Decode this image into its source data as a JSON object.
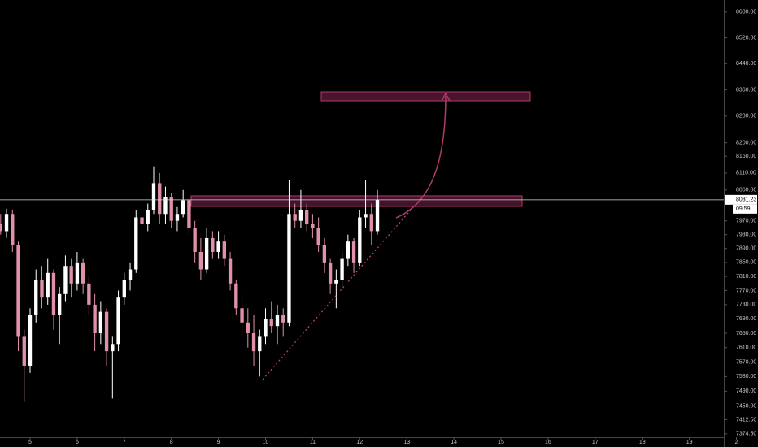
{
  "chart_data": {
    "type": "candlestick",
    "log_scale": true,
    "up_color": "#ffffff",
    "down_color": "#e091a8",
    "countdown": "09:59",
    "x": [
      4.375,
      4.5,
      4.625,
      4.75,
      4.875,
      5.0,
      5.125,
      5.25,
      5.375,
      5.5,
      5.625,
      5.75,
      5.875,
      6.0,
      6.125,
      6.25,
      6.375,
      6.5,
      6.625,
      6.75,
      6.875,
      7.0,
      7.125,
      7.25,
      7.375,
      7.5,
      7.625,
      7.75,
      7.875,
      8.0,
      8.125,
      8.25,
      8.375,
      8.5,
      8.625,
      8.75,
      8.875,
      9.0,
      9.125,
      9.25,
      9.375,
      9.5,
      9.625,
      9.75,
      9.875,
      10.0,
      10.125,
      10.25,
      10.375,
      10.5,
      10.625,
      10.75,
      10.875,
      11.0,
      11.125,
      11.25,
      11.375,
      11.5,
      11.625,
      11.75,
      11.875,
      12.0,
      12.125,
      12.25,
      12.375
    ],
    "open": [
      7960,
      7940,
      7990,
      7900,
      7640,
      7560,
      7700,
      7800,
      7750,
      7820,
      7700,
      7760,
      7840,
      7790,
      7850,
      7790,
      7730,
      7650,
      7710,
      7600,
      7620,
      7750,
      7800,
      7830,
      7980,
      7960,
      8000,
      8080,
      7990,
      8040,
      7970,
      7990,
      8030,
      7950,
      7880,
      7830,
      7920,
      7880,
      7910,
      7860,
      7790,
      7720,
      7680,
      7650,
      7600,
      7640,
      7690,
      7670,
      7700,
      7680,
      7990,
      7970,
      8000,
      7960,
      7950,
      7900,
      7850,
      7790,
      7800,
      7860,
      7910,
      7850,
      7980,
      7990,
      7940
    ],
    "high": [
      7990,
      8005,
      8000,
      7910,
      7660,
      7720,
      7830,
      7840,
      7860,
      7830,
      7780,
      7870,
      7860,
      7880,
      7860,
      7810,
      7760,
      7740,
      7720,
      7640,
      7770,
      7820,
      7850,
      8000,
      8040,
      8020,
      8130,
      8110,
      8070,
      8050,
      8010,
      8060,
      8040,
      7970,
      7920,
      7950,
      7940,
      7940,
      7930,
      7880,
      7800,
      7760,
      7720,
      7700,
      7660,
      7720,
      7740,
      7730,
      7720,
      8090,
      8020,
      8060,
      8020,
      7990,
      7980,
      7920,
      7860,
      7830,
      7880,
      7930,
      7920,
      8000,
      8090,
      8020,
      8060
    ],
    "low": [
      7930,
      7920,
      7880,
      7600,
      7460,
      7540,
      7680,
      7720,
      7730,
      7660,
      7620,
      7740,
      7750,
      7770,
      7760,
      7700,
      7600,
      7620,
      7560,
      7470,
      7600,
      7730,
      7770,
      7820,
      7940,
      7940,
      7990,
      7960,
      7960,
      7950,
      7940,
      7980,
      7930,
      7850,
      7800,
      7820,
      7860,
      7860,
      7840,
      7770,
      7700,
      7640,
      7610,
      7560,
      7530,
      7620,
      7650,
      7620,
      7640,
      7670,
      7950,
      7950,
      7940,
      7920,
      7880,
      7820,
      7760,
      7720,
      7780,
      7840,
      7820,
      7840,
      7950,
      7900,
      7930
    ],
    "close": [
      7940,
      7990,
      7900,
      7640,
      7560,
      7700,
      7800,
      7750,
      7820,
      7700,
      7760,
      7840,
      7790,
      7850,
      7790,
      7730,
      7650,
      7710,
      7600,
      7620,
      7750,
      7800,
      7830,
      7980,
      7960,
      8000,
      8080,
      7990,
      8040,
      7970,
      7990,
      8030,
      7950,
      7880,
      7830,
      7920,
      7880,
      7910,
      7860,
      7790,
      7720,
      7680,
      7650,
      7600,
      7640,
      7690,
      7670,
      7700,
      7680,
      7990,
      7970,
      8000,
      7960,
      7950,
      7900,
      7850,
      7790,
      7800,
      7860,
      7910,
      7850,
      7980,
      7990,
      7940,
      8031.23
    ],
    "xlim": [
      4.361,
      19.732
    ],
    "xticks": [
      5,
      6,
      7,
      8,
      9,
      10,
      11,
      12,
      13,
      14,
      15,
      16,
      17,
      18,
      19,
      {
        "value": 20,
        "label": "2"
      }
    ],
    "ylim": [
      7361,
      8638
    ],
    "yticks": [
      {
        "value": 8600,
        "label": "8600.00"
      },
      {
        "value": 8520,
        "label": "8520.00"
      },
      {
        "value": 8440,
        "label": "8440.00"
      },
      {
        "value": 8360,
        "label": "8360.00"
      },
      {
        "value": 8280,
        "label": "8280.00"
      },
      {
        "value": 8200,
        "label": "8200.00"
      },
      {
        "value": 8160,
        "label": "8160.00"
      },
      {
        "value": 8110,
        "label": "8110.00"
      },
      {
        "value": 8060,
        "label": "8060.00"
      },
      {
        "value": 7970,
        "label": "7970.00"
      },
      {
        "value": 7930,
        "label": "7930.00"
      },
      {
        "value": 7890,
        "label": "7890.00"
      },
      {
        "value": 7850,
        "label": "7850.00"
      },
      {
        "value": 7810,
        "label": "7810.00"
      },
      {
        "value": 7770,
        "label": "7770.00"
      },
      {
        "value": 7730,
        "label": "7730.00"
      },
      {
        "value": 7690,
        "label": "7690.00"
      },
      {
        "value": 7650,
        "label": "7650.00"
      },
      {
        "value": 7610,
        "label": "7610.00"
      },
      {
        "value": 7570,
        "label": "7570.00"
      },
      {
        "value": 7530,
        "label": "7530.00"
      },
      {
        "value": 7490,
        "label": "7490.00"
      },
      {
        "value": 7450,
        "label": "7450.00"
      },
      {
        "value": 7412.5,
        "label": "7412.50"
      },
      {
        "value": 7374.5,
        "label": "7374.50"
      }
    ]
  }
}
